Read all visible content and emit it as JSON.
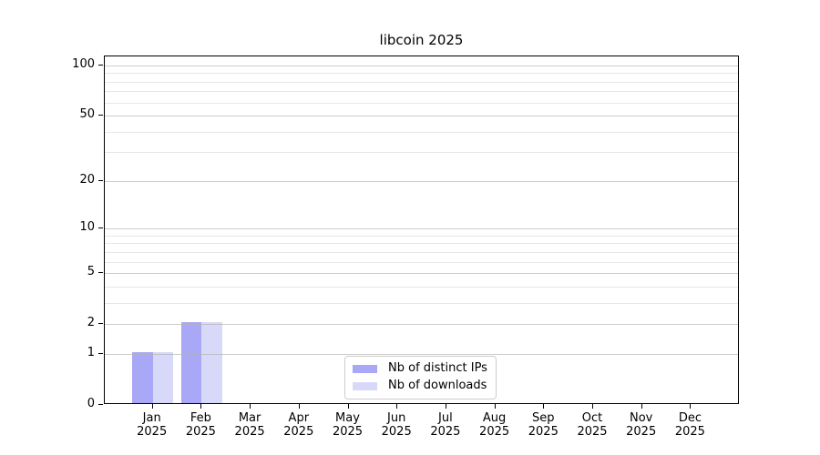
{
  "chart_data": {
    "type": "bar",
    "title": "libcoin 2025",
    "categories": [
      {
        "month": "Jan",
        "year": "2025"
      },
      {
        "month": "Feb",
        "year": "2025"
      },
      {
        "month": "Mar",
        "year": "2025"
      },
      {
        "month": "Apr",
        "year": "2025"
      },
      {
        "month": "May",
        "year": "2025"
      },
      {
        "month": "Jun",
        "year": "2025"
      },
      {
        "month": "Jul",
        "year": "2025"
      },
      {
        "month": "Aug",
        "year": "2025"
      },
      {
        "month": "Sep",
        "year": "2025"
      },
      {
        "month": "Oct",
        "year": "2025"
      },
      {
        "month": "Nov",
        "year": "2025"
      },
      {
        "month": "Dec",
        "year": "2025"
      }
    ],
    "series": [
      {
        "name": "Nb of distinct IPs",
        "color": "#a8a8f6",
        "values": [
          1,
          2,
          0,
          0,
          0,
          0,
          0,
          0,
          0,
          0,
          0,
          0
        ]
      },
      {
        "name": "Nb of downloads",
        "color": "#d8d8f8",
        "values": [
          1,
          2,
          0,
          0,
          0,
          0,
          0,
          0,
          0,
          0,
          0,
          0
        ]
      }
    ],
    "yscale": "log1p",
    "ylim": [
      0,
      113
    ],
    "yticks": [
      0,
      1,
      2,
      5,
      10,
      20,
      50,
      100
    ],
    "yticks_minor": [
      3,
      4,
      6,
      7,
      8,
      9,
      30,
      40,
      60,
      70,
      80,
      90
    ],
    "xlabel": "",
    "ylabel": "",
    "grid": true,
    "legend_position": "lower center",
    "colors": {
      "grid_major": "#b2b2b2",
      "grid_minor": "#e1e1e1",
      "axis_frame": "#000000",
      "background": "#ffffff",
      "text": "#000000"
    }
  }
}
